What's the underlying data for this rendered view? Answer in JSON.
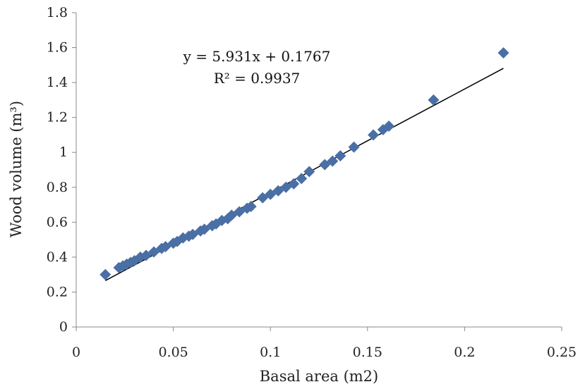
{
  "chart_data": {
    "type": "scatter",
    "title": "",
    "xlabel": "Basal area (m2)",
    "ylabel": "Wood volume (m³)",
    "xlim": [
      0,
      0.25
    ],
    "ylim": [
      0,
      1.8
    ],
    "xticks": [
      "0",
      "0.05",
      "0.1",
      "0.15",
      "0.2",
      "0.25"
    ],
    "yticks": [
      "0",
      "0.2",
      "0.4",
      "0.6",
      "0.8",
      "1",
      "1.2",
      "1.4",
      "1.6",
      "1.8"
    ],
    "grid": false,
    "marker": "diamond",
    "marker_color": "#4a6fa5",
    "series": [
      {
        "x": [
          0.015,
          0.022,
          0.024,
          0.026,
          0.028,
          0.03,
          0.033,
          0.036,
          0.04,
          0.044,
          0.046,
          0.05,
          0.052,
          0.055,
          0.058,
          0.06,
          0.064,
          0.066,
          0.07,
          0.072,
          0.075,
          0.078,
          0.08,
          0.084,
          0.088,
          0.09,
          0.096,
          0.1,
          0.104,
          0.108,
          0.112,
          0.116,
          0.12,
          0.128,
          0.132,
          0.136,
          0.143,
          0.153,
          0.158,
          0.161,
          0.184,
          0.22
        ],
        "y": [
          0.3,
          0.34,
          0.35,
          0.36,
          0.37,
          0.38,
          0.4,
          0.41,
          0.43,
          0.45,
          0.46,
          0.48,
          0.49,
          0.51,
          0.52,
          0.53,
          0.55,
          0.56,
          0.58,
          0.59,
          0.61,
          0.62,
          0.64,
          0.66,
          0.68,
          0.69,
          0.74,
          0.76,
          0.78,
          0.8,
          0.82,
          0.85,
          0.89,
          0.93,
          0.95,
          0.98,
          1.03,
          1.1,
          1.13,
          1.15,
          1.3,
          1.57
        ]
      }
    ],
    "trendline": {
      "type": "linear",
      "slope": 5.931,
      "intercept": 0.1767,
      "x_range": [
        0.015,
        0.22
      ],
      "color": "#000000"
    },
    "annotations": {
      "equation": "y = 5.931x + 0.1767",
      "r_squared": "R² = 0.9937"
    }
  }
}
